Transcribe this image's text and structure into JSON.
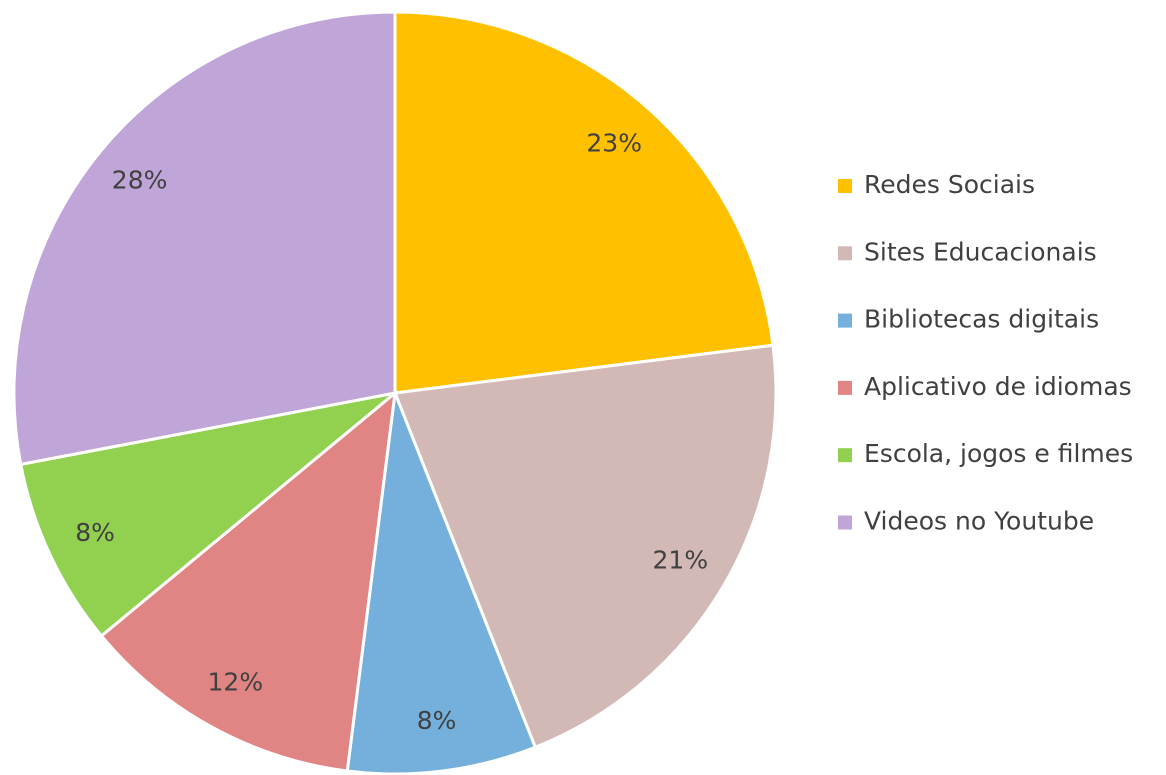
{
  "chart_data": {
    "type": "pie",
    "categories": [
      "Redes Sociais",
      "Sites Educacionais",
      "Bibliotecas digitais",
      "Aplicativo de idiomas",
      "Escola, jogos e filmes",
      "Videos no Youtube"
    ],
    "values": [
      23,
      21,
      8,
      12,
      8,
      28
    ],
    "value_labels": [
      "23%",
      "21%",
      "8%",
      "12%",
      "8%",
      "28%"
    ],
    "colors": [
      "#ffc000",
      "#d2b9b5",
      "#74b0db",
      "#e08583",
      "#92d050",
      "#c0a6d8"
    ],
    "legend": "right"
  }
}
